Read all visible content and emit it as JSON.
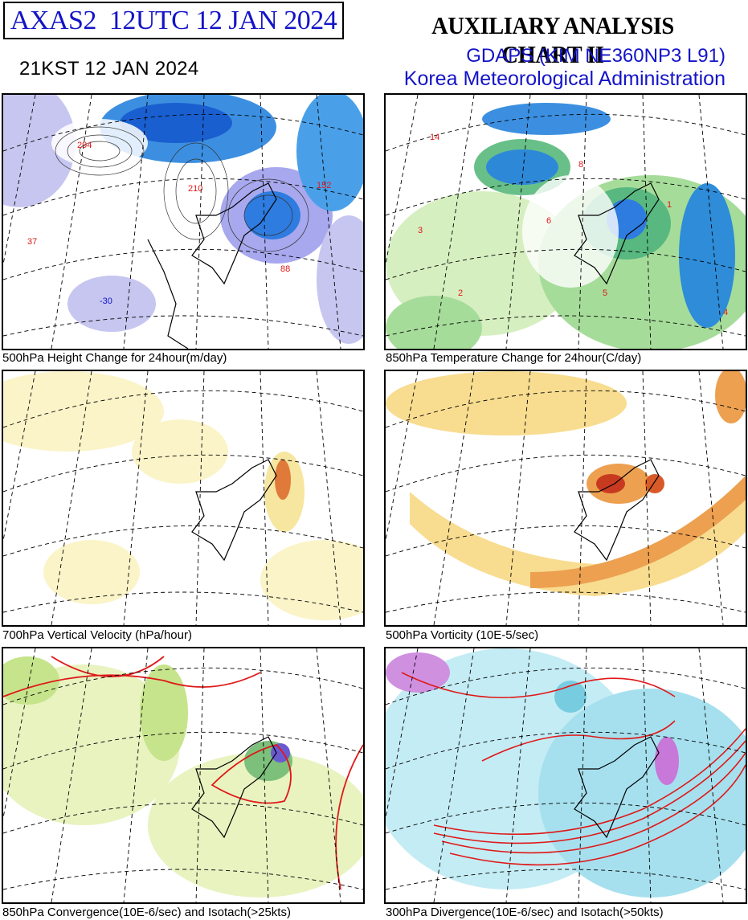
{
  "header": {
    "product_id": "AXAS2  12UTC 12 JAN 2024",
    "title": "AUXILIARY ANALYSIS CHART II",
    "model": "GDAPS (KIM NE360NP3 L91)",
    "agency": "Korea Meteorological Administration",
    "local_time": "21KST 12 JAN 2024"
  },
  "panels": [
    {
      "caption": "500hPa Height Change for 24hour(m/day)",
      "palette": "blue"
    },
    {
      "caption": "850hPa Temperature Change for 24hour(C/day)",
      "palette": "green"
    },
    {
      "caption": "700hPa Vertical Velocity (hPa/hour)",
      "palette": "yellow"
    },
    {
      "caption": "500hPa Vorticity (10E-5/sec)",
      "palette": "orange"
    },
    {
      "caption": "850hPa Convergence(10E-6/sec) and Isotach(>25kts)",
      "palette": "conv"
    },
    {
      "caption": "300hPa Divergence(10E-6/sec) and Isotach(>50kts)",
      "palette": "div"
    }
  ],
  "colors": {
    "title_blue": "#1414c8",
    "contour_red": "#e01818",
    "coast_black": "#000000",
    "grid_dash": "#000000"
  }
}
